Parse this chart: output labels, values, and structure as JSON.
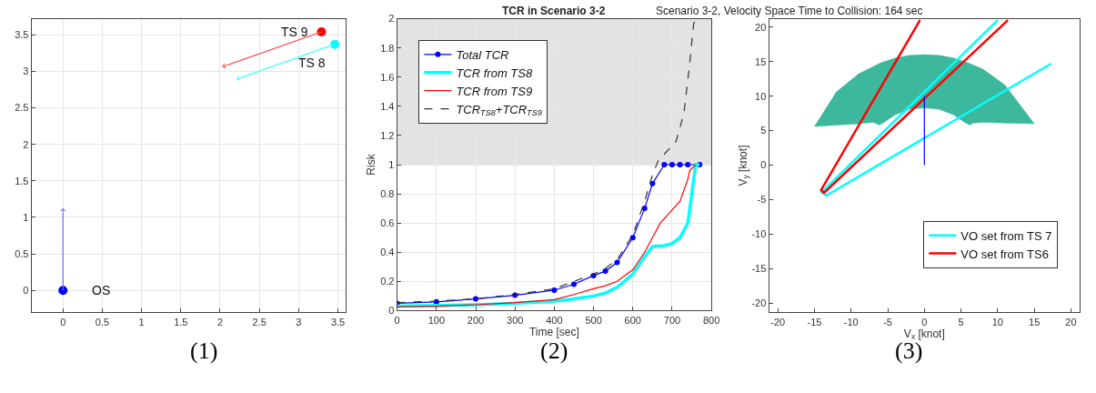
{
  "chart_data": [
    {
      "type": "scatter",
      "xlim": [
        -0.4,
        3.6
      ],
      "ylim": [
        -0.3,
        3.72
      ],
      "xticks": [
        0,
        0.5,
        1,
        1.5,
        2,
        2.5,
        3,
        3.5
      ],
      "yticks": [
        0,
        0.5,
        1,
        1.5,
        2,
        2.5,
        3,
        3.5
      ],
      "grid": true,
      "legend": false,
      "annotations": [
        "(1)"
      ],
      "series": [
        {
          "name": "OS",
          "color": "#0000ff",
          "x": [
            0
          ],
          "values": [
            0
          ],
          "marker": "circle"
        },
        {
          "name": "TS 9",
          "color": "#ff0000",
          "x": [
            3.29
          ],
          "values": [
            3.54
          ],
          "marker": "circle"
        },
        {
          "name": "TS 8",
          "color": "#00ffff",
          "x": [
            3.46
          ],
          "values": [
            3.37
          ],
          "marker": "circle"
        },
        {
          "type": "line",
          "color": "#6a6aff",
          "x": [
            0,
            0
          ],
          "values": [
            0,
            1.1
          ],
          "marker": "triangle"
        },
        {
          "type": "line",
          "color": "#ff4040",
          "x": [
            3.29,
            2.05
          ],
          "values": [
            3.54,
            3.07
          ],
          "marker": "triangle"
        },
        {
          "type": "line",
          "color": "#40ffff",
          "x": [
            3.46,
            2.23
          ],
          "values": [
            3.37,
            2.9
          ],
          "marker": "triangle"
        }
      ]
    },
    {
      "type": "line",
      "title": "TCR in Scenario 3-2",
      "xlabel": "Time [sec]",
      "ylabel": "Risk",
      "xlim": [
        0,
        800
      ],
      "ylim": [
        0,
        2
      ],
      "xticks": [
        0,
        100,
        200,
        300,
        400,
        500,
        600,
        700,
        800
      ],
      "yticks": [
        0,
        0.2,
        0.4,
        0.6,
        0.8,
        1,
        1.2,
        1.4,
        1.6,
        1.8,
        2
      ],
      "grid": true,
      "legend": "top left",
      "annotations": [
        "(2)"
      ],
      "bands": [
        {
          "axis": "y",
          "from": 1,
          "to": 2,
          "color": "#e3e3e3"
        }
      ],
      "series": [
        {
          "name": "Total TCR",
          "color": "#0000ff",
          "marker": "circle",
          "x": [
            0,
            100,
            200,
            300,
            400,
            450,
            500,
            530,
            560,
            600,
            630,
            650,
            680,
            700,
            720,
            740,
            770
          ],
          "values": [
            0.05,
            0.06,
            0.08,
            0.105,
            0.14,
            0.18,
            0.24,
            0.27,
            0.33,
            0.5,
            0.7,
            0.87,
            1.0,
            1.0,
            1.0,
            1.0,
            1.0
          ]
        },
        {
          "name": "TCR from TS8",
          "color": "#00ffff",
          "x": [
            0,
            100,
            200,
            300,
            400,
            450,
            500,
            530,
            560,
            600,
            630,
            650,
            680,
            700,
            720,
            740,
            750,
            760,
            770
          ],
          "values": [
            0.03,
            0.035,
            0.04,
            0.05,
            0.065,
            0.08,
            0.1,
            0.12,
            0.16,
            0.25,
            0.37,
            0.44,
            0.445,
            0.46,
            0.5,
            0.6,
            0.8,
            1.0,
            1.0
          ]
        },
        {
          "name": "TCR from TS9",
          "color": "#ff0000",
          "x": [
            0,
            100,
            200,
            300,
            400,
            450,
            500,
            530,
            560,
            600,
            630,
            650,
            670,
            690,
            720,
            740,
            745,
            760
          ],
          "values": [
            0.025,
            0.03,
            0.04,
            0.055,
            0.075,
            0.11,
            0.15,
            0.17,
            0.2,
            0.28,
            0.4,
            0.5,
            0.6,
            0.66,
            0.75,
            0.9,
            0.96,
            1.0
          ]
        },
        {
          "name": "TCR$_{TS8}$+TCR$_{TS9}$",
          "color": "#333333",
          "line_style": "dashed",
          "x": [
            0,
            100,
            200,
            300,
            400,
            500,
            530,
            560,
            600,
            630,
            650,
            665,
            690,
            710,
            730,
            745,
            755,
            765
          ],
          "values": [
            0.055,
            0.065,
            0.08,
            0.11,
            0.15,
            0.25,
            0.29,
            0.35,
            0.52,
            0.75,
            0.93,
            1.03,
            1.1,
            1.16,
            1.35,
            1.7,
            1.97,
            2.0
          ]
        }
      ]
    },
    {
      "type": "line",
      "title": "Scenario 3-2, Velocity Space Time to Collision: 164 sec",
      "xlabel": "V$_{x}$ [knot]",
      "ylabel": "V$_{y}$ [knot]",
      "xlim": [
        -21.2,
        21.2
      ],
      "ylim": [
        -21.3,
        21.2
      ],
      "xticks": [
        -20,
        -15,
        -10,
        -5,
        0,
        5,
        10,
        15,
        20
      ],
      "yticks": [
        -20,
        -15,
        -10,
        -5,
        0,
        5,
        10,
        15,
        20
      ],
      "legend": "bottom right",
      "annotations": [
        "(3)"
      ],
      "series": [
        {
          "type": "area",
          "color": "#3db89c",
          "x": [
            -15,
            -12,
            -9,
            -6,
            -4,
            -2,
            0,
            2,
            4,
            6,
            8,
            11,
            15,
            11,
            8,
            6.6,
            6.2,
            5.5,
            4,
            2,
            0,
            -2,
            -4,
            -5.5,
            -6.2,
            -6.5,
            -7,
            -9,
            -12,
            -15
          ],
          "values": [
            5.6,
            10.6,
            13.2,
            14.8,
            15.5,
            15.9,
            16,
            15.9,
            15.5,
            14.8,
            13.9,
            11.6,
            6.0,
            6.1,
            6.2,
            6.1,
            5.8,
            6.2,
            7.3,
            8.1,
            8.3,
            8.1,
            7.3,
            6.2,
            5.8,
            6.0,
            6.2,
            6.0,
            5.8,
            5.6
          ]
        },
        {
          "name": "VO set from TS 7",
          "color": "#00ffff",
          "x": [
            10,
            -14,
            -13.4,
            17.3
          ],
          "values": [
            21,
            -3.9,
            -4.4,
            14.7
          ]
        },
        {
          "name": "VO set from TS6",
          "color": "#ff0000",
          "x": [
            -0.6,
            -14.1,
            -13.7,
            11.4
          ],
          "values": [
            21,
            -3.6,
            -4.0,
            21
          ]
        },
        {
          "color": "#0000ff",
          "x": [
            0,
            0
          ],
          "values": [
            0,
            10
          ]
        }
      ]
    }
  ]
}
